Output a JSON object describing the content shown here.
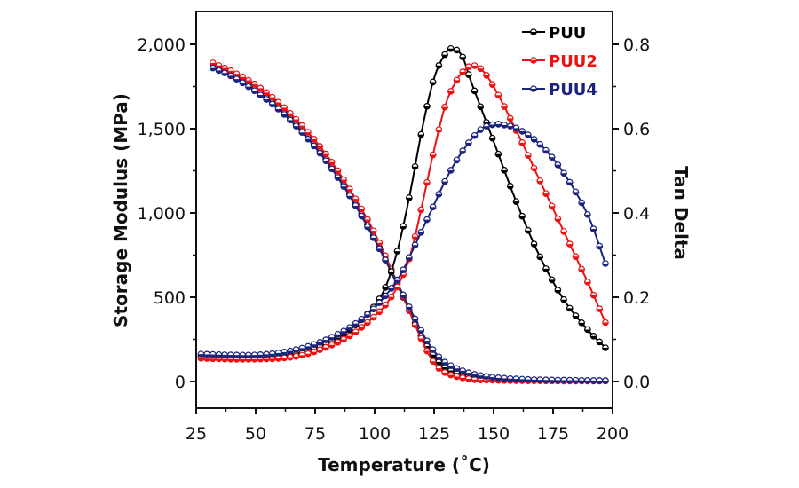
{
  "chart_data": {
    "type": "line",
    "title": "",
    "xlabel": "Temperature (˚C)",
    "ylabel": "Storage Modulus (MPa)",
    "y2label": "Tan Delta",
    "xlim": [
      25,
      200
    ],
    "ylim": [
      -130,
      2150
    ],
    "y2lim": [
      -0.052,
      0.86
    ],
    "xticks": [
      25,
      50,
      75,
      100,
      125,
      150,
      175,
      200
    ],
    "xtick_labels": [
      "25",
      "50",
      "75",
      "100",
      "125",
      "150",
      "175",
      "200"
    ],
    "yticks": [
      0,
      500,
      1000,
      1500,
      2000
    ],
    "ytick_labels": [
      "0",
      "500",
      "1,000",
      "1,500",
      "2,000"
    ],
    "y2ticks": [
      0.0,
      0.2,
      0.4,
      0.6,
      0.8
    ],
    "y2tick_labels": [
      "0.0",
      "0.2",
      "0.4",
      "0.6",
      "0.8"
    ],
    "grid": false,
    "legend": {
      "position": "top-right"
    },
    "series": [
      {
        "name": "PUU",
        "color": "#000000",
        "axis": "left",
        "kind": "storage_modulus",
        "x": [
          32,
          40,
          50,
          60,
          70,
          80,
          90,
          100,
          110,
          120,
          125,
          130,
          140,
          150,
          160,
          170,
          180,
          190,
          197
        ],
        "y": [
          1870,
          1820,
          1730,
          1620,
          1480,
          1310,
          1100,
          850,
          560,
          260,
          150,
          80,
          30,
          15,
          10,
          8,
          6,
          5,
          5
        ]
      },
      {
        "name": "PUU2",
        "color": "#ee1111",
        "axis": "left",
        "kind": "storage_modulus",
        "x": [
          32,
          40,
          50,
          60,
          70,
          80,
          90,
          100,
          110,
          120,
          125,
          130,
          140,
          150,
          160,
          170,
          180,
          190,
          197
        ],
        "y": [
          1890,
          1840,
          1760,
          1650,
          1510,
          1340,
          1130,
          880,
          570,
          240,
          110,
          50,
          15,
          8,
          5,
          4,
          3,
          3,
          3
        ]
      },
      {
        "name": "PUU4",
        "color": "#1a237e",
        "axis": "left",
        "kind": "storage_modulus",
        "x": [
          32,
          40,
          50,
          60,
          70,
          80,
          90,
          100,
          110,
          120,
          125,
          130,
          140,
          150,
          160,
          170,
          180,
          190,
          197
        ],
        "y": [
          1860,
          1810,
          1720,
          1610,
          1470,
          1300,
          1090,
          840,
          570,
          290,
          180,
          110,
          50,
          25,
          15,
          10,
          8,
          6,
          5
        ]
      },
      {
        "name": "PUU",
        "color": "#000000",
        "axis": "right",
        "kind": "tan_delta",
        "x": [
          27,
          40,
          50,
          60,
          70,
          80,
          90,
          100,
          105,
          110,
          115,
          120,
          125,
          130,
          133,
          137,
          140,
          150,
          160,
          170,
          180,
          190,
          197
        ],
        "y": [
          0.06,
          0.057,
          0.055,
          0.058,
          0.068,
          0.09,
          0.125,
          0.18,
          0.23,
          0.32,
          0.45,
          0.6,
          0.72,
          0.78,
          0.79,
          0.77,
          0.72,
          0.57,
          0.42,
          0.29,
          0.19,
          0.12,
          0.08
        ]
      },
      {
        "name": "PUU2",
        "color": "#ee1111",
        "axis": "right",
        "kind": "tan_delta",
        "x": [
          27,
          40,
          50,
          60,
          70,
          80,
          90,
          100,
          105,
          110,
          115,
          120,
          125,
          130,
          135,
          138,
          141,
          145,
          150,
          160,
          170,
          180,
          190,
          197
        ],
        "y": [
          0.055,
          0.053,
          0.053,
          0.055,
          0.063,
          0.082,
          0.11,
          0.155,
          0.185,
          0.23,
          0.3,
          0.42,
          0.55,
          0.66,
          0.72,
          0.74,
          0.75,
          0.74,
          0.7,
          0.59,
          0.47,
          0.35,
          0.23,
          0.14
        ]
      },
      {
        "name": "PUU4",
        "color": "#1a237e",
        "axis": "right",
        "kind": "tan_delta",
        "x": [
          27,
          40,
          50,
          60,
          70,
          80,
          90,
          100,
          110,
          115,
          120,
          125,
          130,
          135,
          140,
          145,
          150,
          153,
          160,
          170,
          180,
          190,
          197
        ],
        "y": [
          0.065,
          0.063,
          0.063,
          0.068,
          0.08,
          0.1,
          0.13,
          0.175,
          0.245,
          0.3,
          0.36,
          0.42,
          0.48,
          0.53,
          0.57,
          0.6,
          0.61,
          0.61,
          0.6,
          0.56,
          0.49,
          0.39,
          0.28
        ]
      }
    ]
  }
}
